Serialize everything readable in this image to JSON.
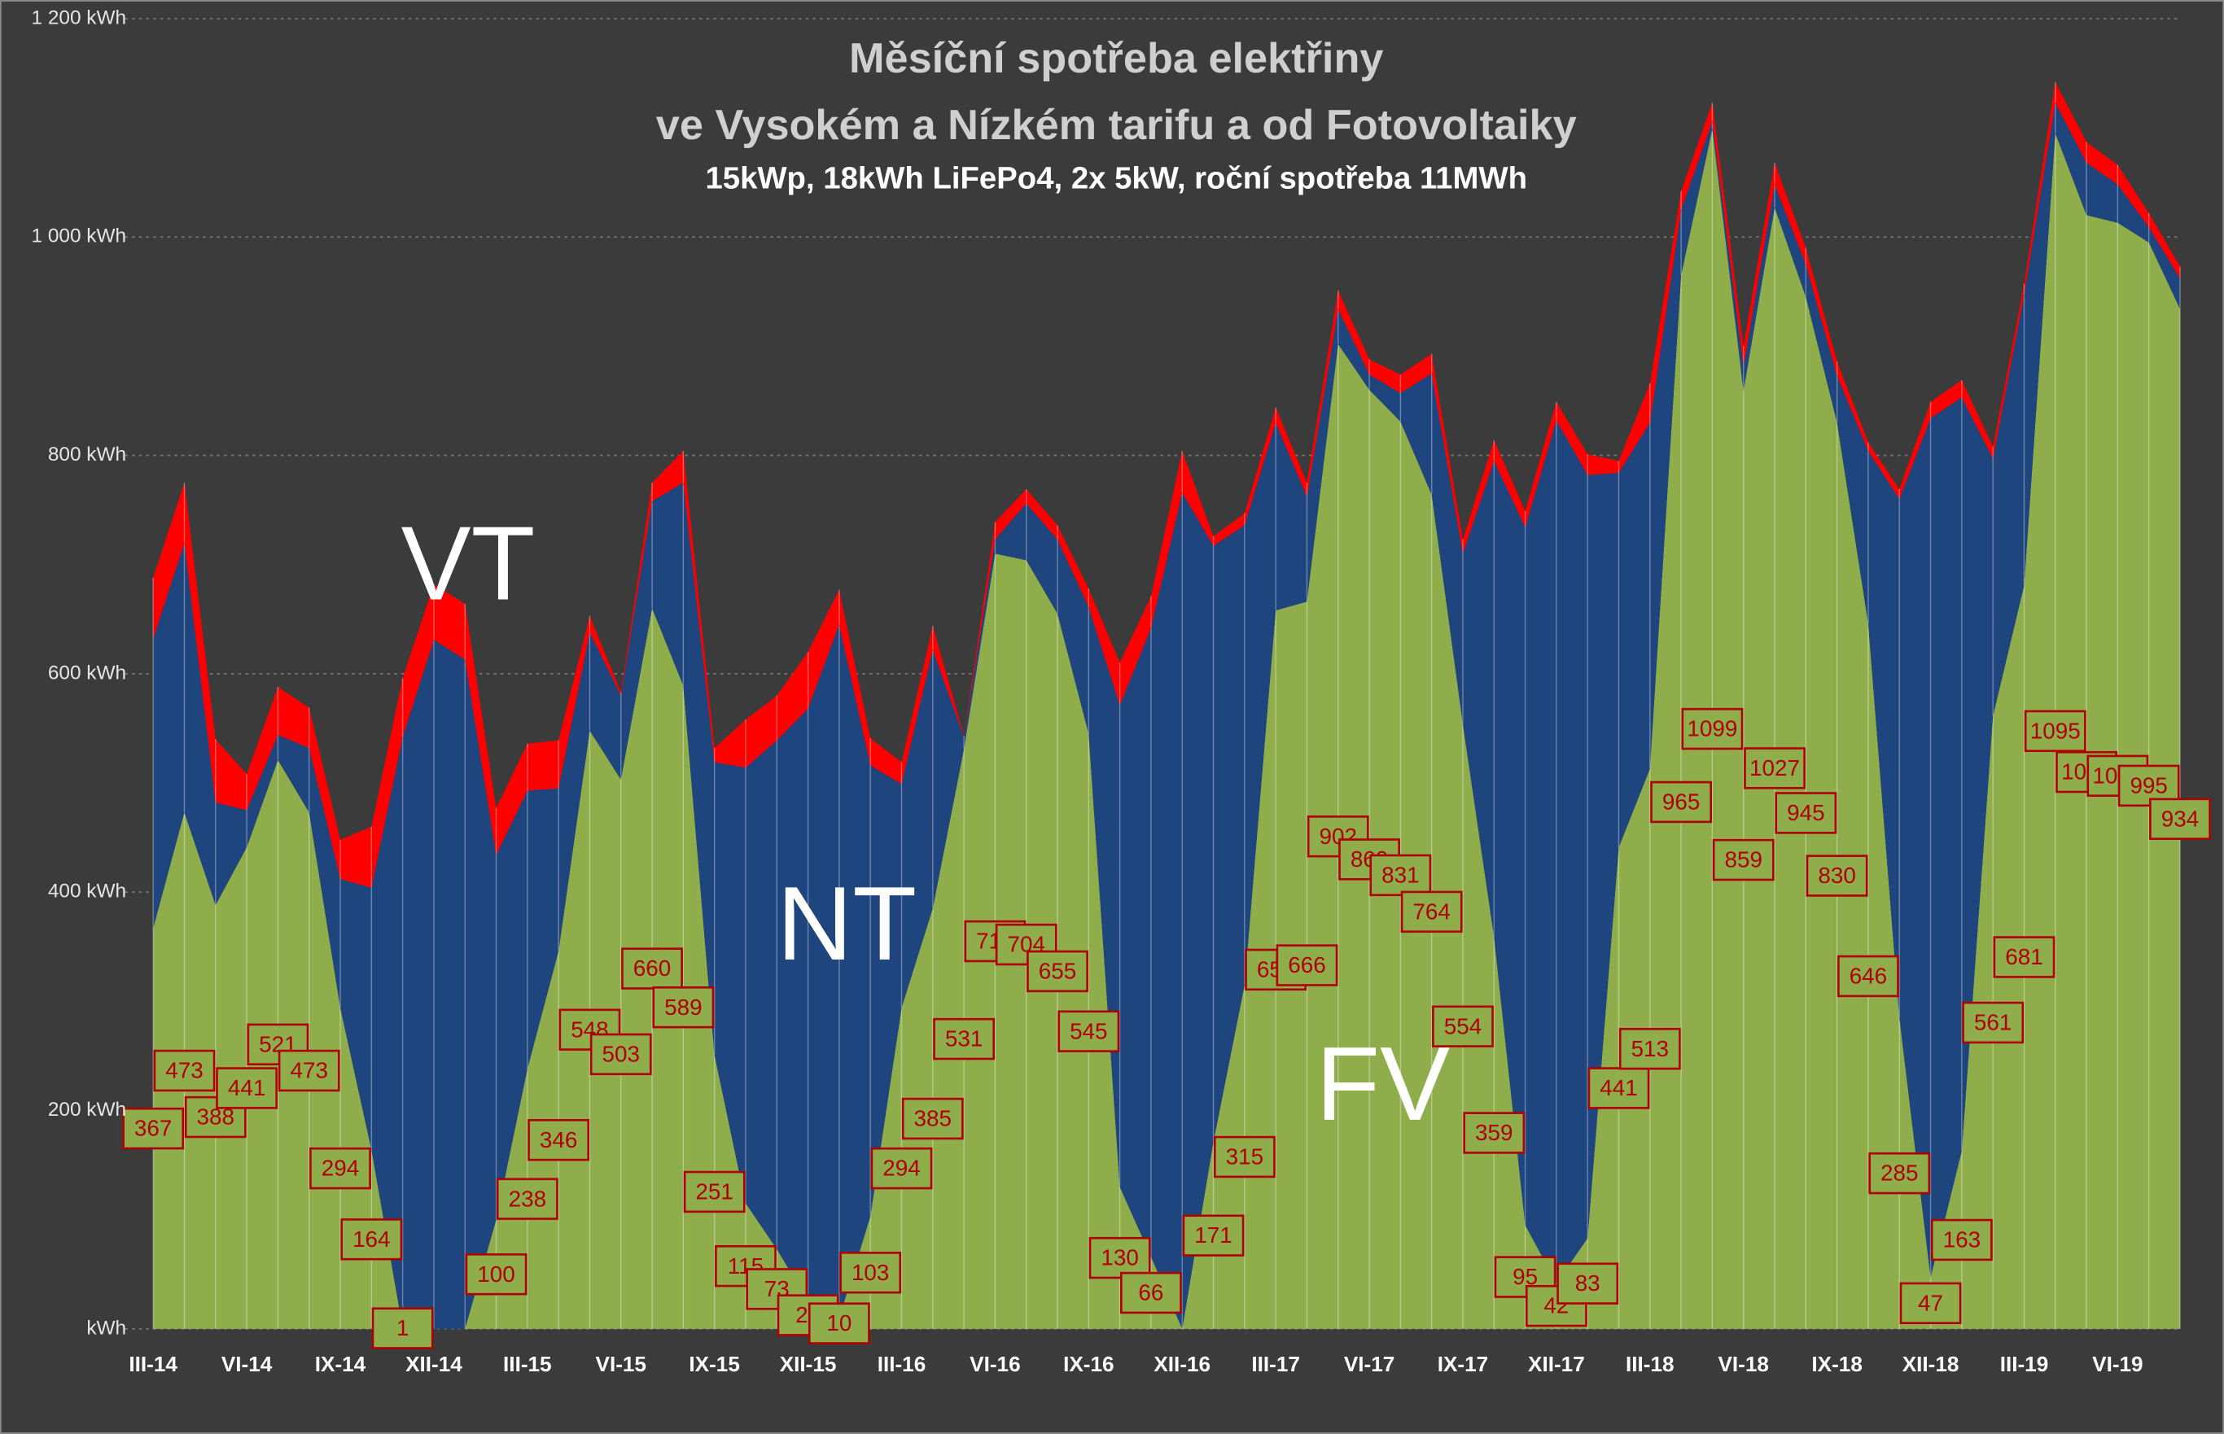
{
  "chart_data": {
    "type": "stacked_area",
    "title": "Měsíční spotřeba elektřiny",
    "title2": "ve Vysokém a Nízkém tarifu a od Fotovoltaiky",
    "subtitle": "15kWp, 18kWh LiFePo4, 2x 5kW, roční spotřeba 11MWh",
    "categories": [
      "III-14",
      null,
      null,
      "VI-14",
      null,
      null,
      "IX-14",
      null,
      null,
      "XII-14",
      null,
      null,
      "III-15",
      null,
      null,
      "VI-15",
      null,
      null,
      "IX-15",
      null,
      null,
      "XII-15",
      null,
      null,
      "III-16",
      null,
      null,
      "VI-16",
      null,
      null,
      "IX-16",
      null,
      null,
      "XII-16",
      null,
      null,
      "III-17",
      null,
      null,
      "VI-17",
      null,
      null,
      "IX-17",
      null,
      null,
      "XII-17",
      null,
      null,
      "III-18",
      null,
      null,
      "VI-18",
      null,
      null,
      "IX-18",
      null,
      null,
      "XII-18",
      null,
      null,
      "III-19",
      null,
      null,
      "VI-19",
      null,
      null
    ],
    "series": [
      {
        "name": "FV",
        "color": "#8fae4b",
        "data_labels": true,
        "values": [
          367,
          473,
          388,
          441,
          521,
          473,
          294,
          164,
          1,
          0,
          0,
          100,
          238,
          346,
          548,
          503,
          660,
          589,
          251,
          115,
          73,
          25,
          10,
          103,
          294,
          385,
          531,
          710,
          704,
          655,
          545,
          130,
          66,
          0,
          171,
          315,
          658,
          666,
          902,
          860,
          831,
          764,
          554,
          359,
          95,
          42,
          83,
          441,
          513,
          965,
          1099,
          859,
          1027,
          945,
          830,
          646,
          285,
          47,
          163,
          561,
          681,
          1095,
          1020,
          1013,
          995,
          934
        ]
      },
      {
        "name": "NT",
        "color": "#1f457f",
        "values": [
          265,
          247,
          94,
          34,
          23,
          59,
          118,
          240,
          541,
          631,
          613,
          334,
          255,
          149,
          90,
          77,
          98,
          186,
          268,
          399,
          466,
          543,
          635,
          413,
          205,
          237,
          11,
          13,
          52,
          68,
          116,
          441,
          576,
          766,
          546,
          421,
          172,
          96,
          32,
          14,
          26,
          111,
          156,
          436,
          639,
          790,
          699,
          343,
          317,
          60,
          7,
          23,
          21,
          30,
          43,
          158,
          475,
          787,
          690,
          236,
          266,
          28,
          48,
          35,
          14,
          28
        ]
      },
      {
        "name": "VT",
        "color": "#ff0000",
        "values": [
          56,
          55,
          58,
          33,
          44,
          37,
          36,
          56,
          54,
          51,
          51,
          43,
          43,
          44,
          15,
          3,
          17,
          29,
          13,
          44,
          41,
          52,
          32,
          25,
          20,
          22,
          1,
          16,
          13,
          13,
          17,
          39,
          29,
          38,
          9,
          11,
          14,
          13,
          17,
          14,
          17,
          18,
          13,
          19,
          15,
          17,
          19,
          11,
          36,
          17,
          17,
          18,
          20,
          15,
          13,
          8,
          9,
          15,
          16,
          11,
          10,
          19,
          19,
          18,
          13,
          11
        ]
      }
    ],
    "ylim": [
      0,
      1200
    ],
    "yticks": [
      {
        "value": 0,
        "label": "kWh"
      },
      {
        "value": 200,
        "label": "200 kWh"
      },
      {
        "value": 400,
        "label": "400 kWh"
      },
      {
        "value": 600,
        "label": "600 kWh"
      },
      {
        "value": 800,
        "label": "800 kWh"
      },
      {
        "value": 1000,
        "label": "1 000 kWh"
      },
      {
        "value": 1200,
        "label": "1 200 kWh"
      }
    ],
    "grid": true
  }
}
